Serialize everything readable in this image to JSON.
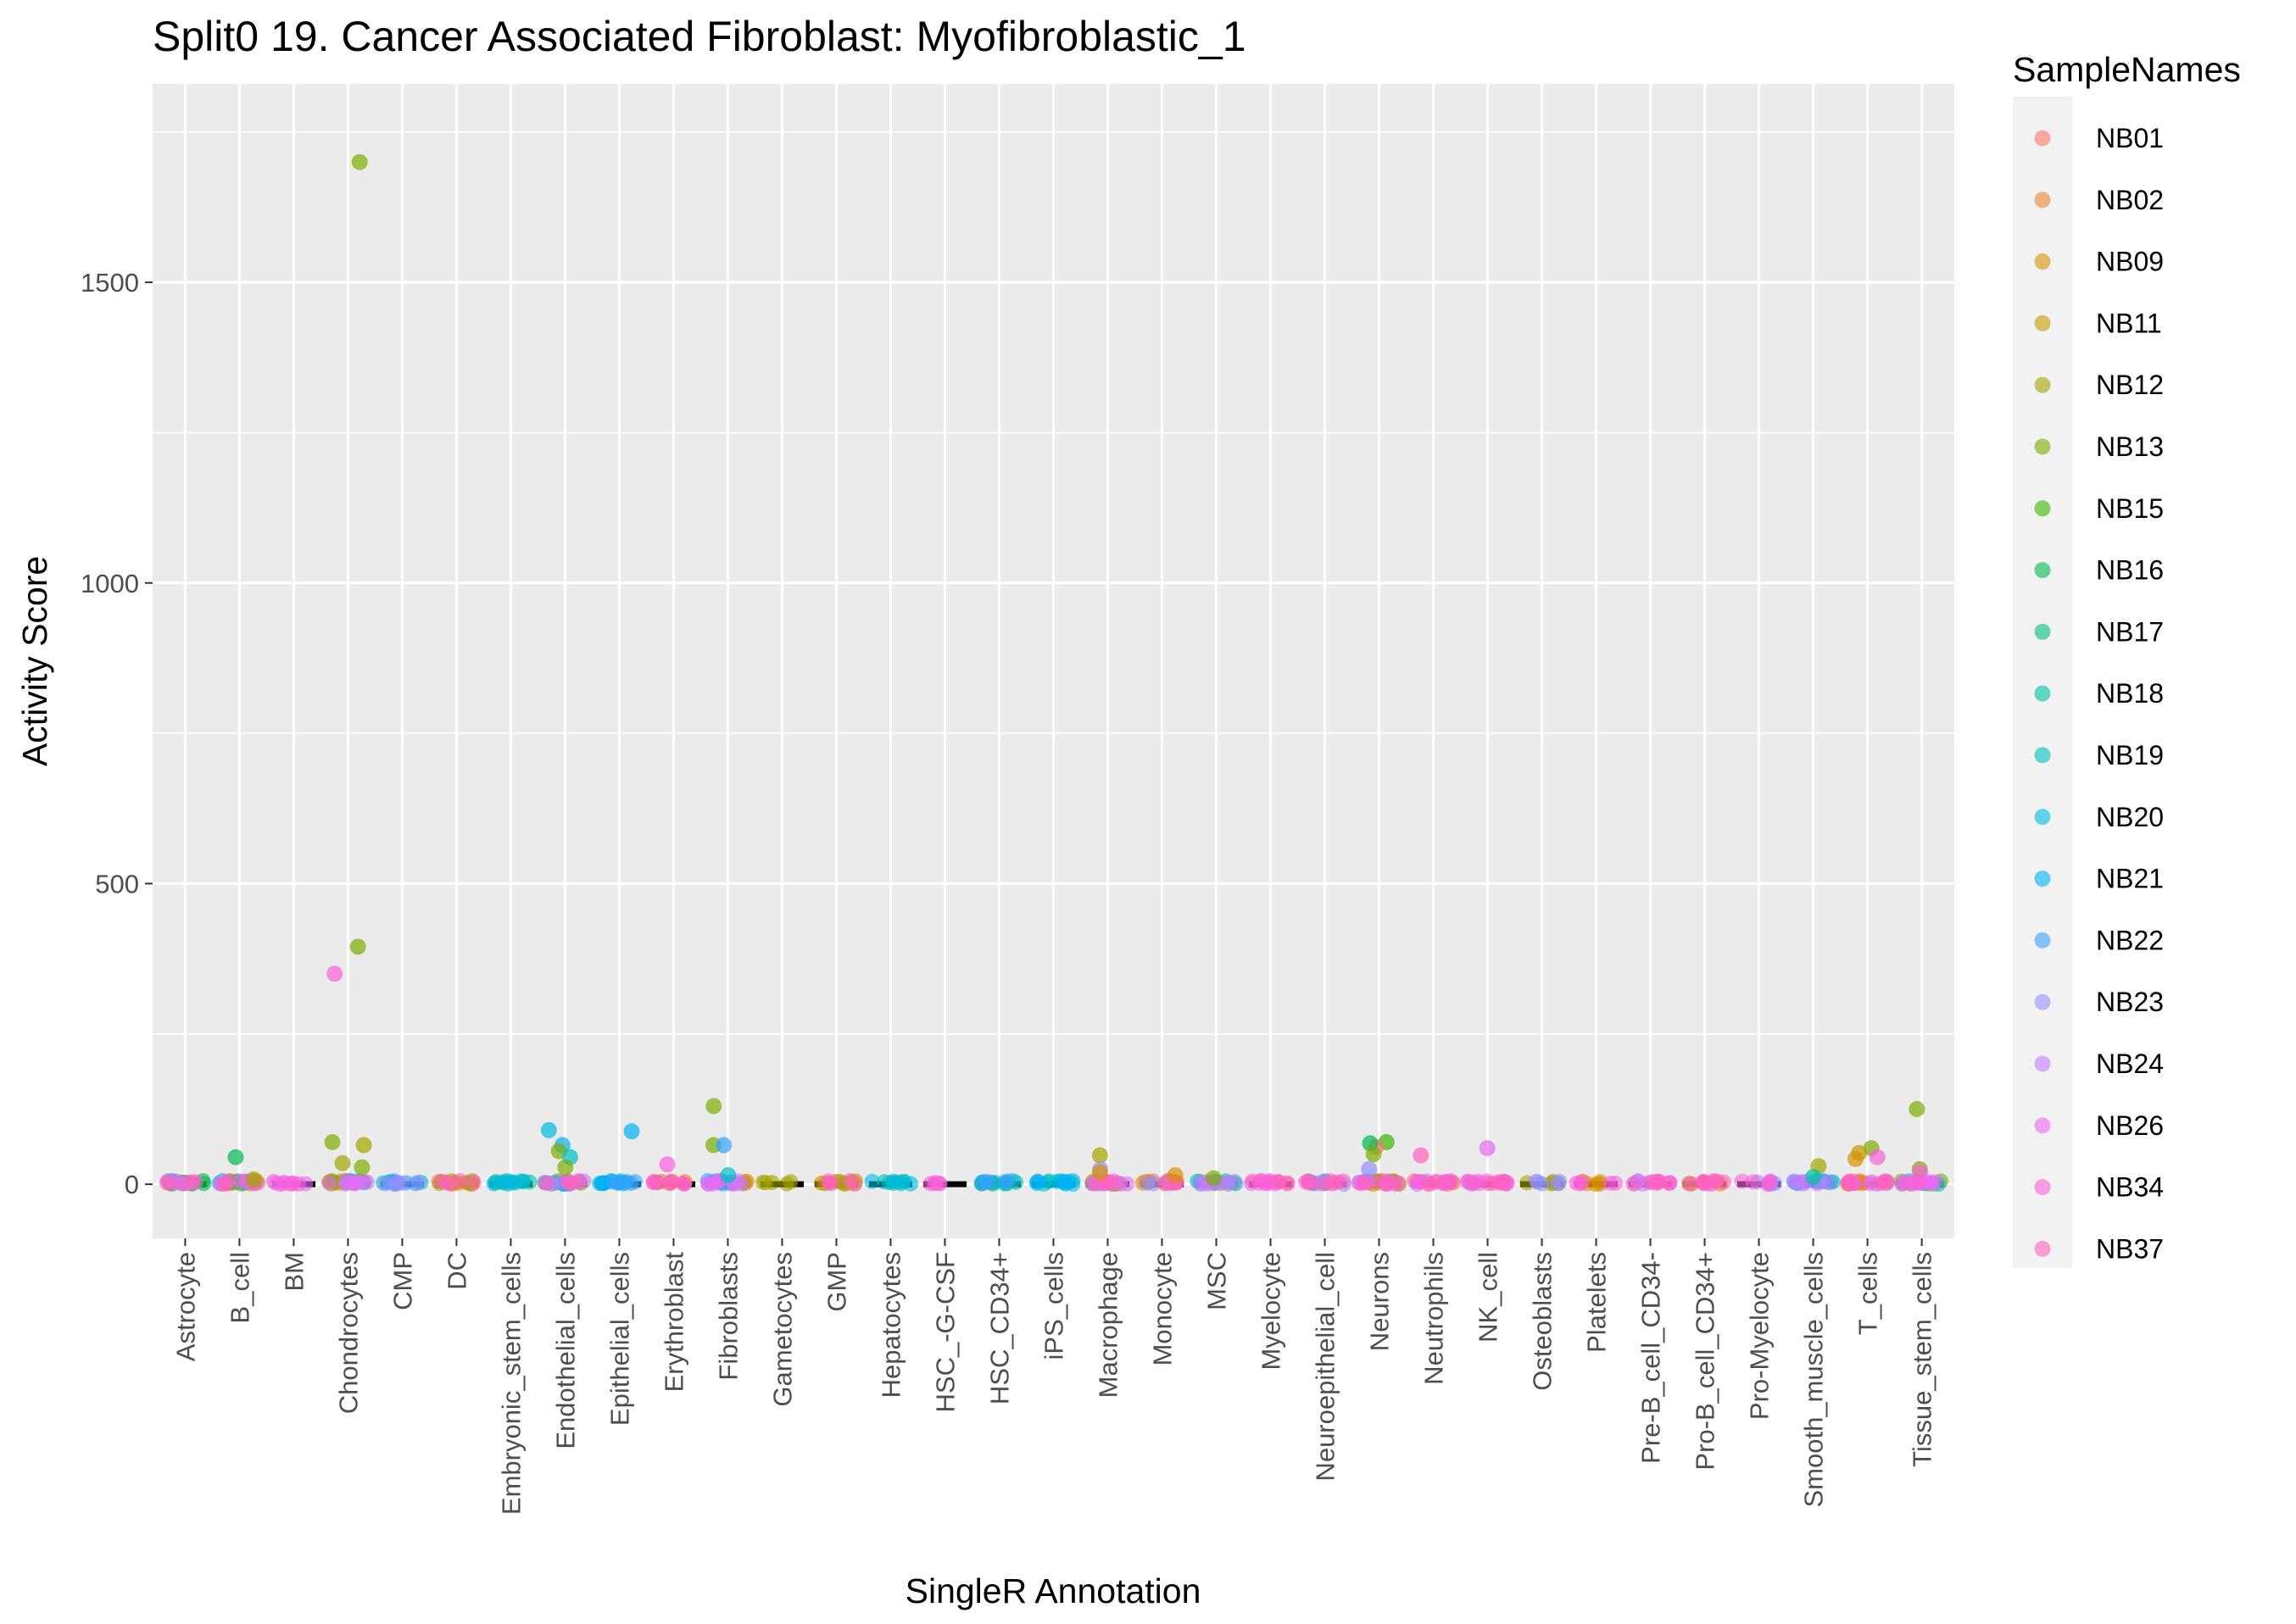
{
  "chart_data": {
    "type": "scatter",
    "title": "Split0 19. Cancer Associated Fibroblast: Myofibroblastic_1",
    "xlabel": "SingleR Annotation",
    "ylabel": "Activity Score",
    "ylim": [
      -90,
      1830
    ],
    "yticks": [
      0,
      500,
      1000,
      1500
    ],
    "grid": true,
    "legend_position": "right",
    "categories": [
      "Astrocyte",
      "B_cell",
      "BM",
      "Chondrocytes",
      "CMP",
      "DC",
      "Embryonic_stem_cells",
      "Endothelial_cells",
      "Epithelial_cells",
      "Erythroblast",
      "Fibroblasts",
      "Gametocytes",
      "GMP",
      "Hepatocytes",
      "HSC_-G-CSF",
      "HSC_CD34+",
      "iPS_cells",
      "Macrophage",
      "Monocyte",
      "MSC",
      "Myelocyte",
      "Neuroepithelial_cell",
      "Neurons",
      "Neutrophils",
      "NK_cell",
      "Osteoblasts",
      "Platelets",
      "Pre-B_cell_CD34-",
      "Pro-B_cell_CD34+",
      "Pro-Myelocyte",
      "Smooth_muscle_cells",
      "T_cells",
      "Tissue_stem_cells"
    ],
    "legend_title": "SampleNames",
    "series": [
      {
        "name": "NB01",
        "color": "#F8766D"
      },
      {
        "name": "NB02",
        "color": "#EA8331"
      },
      {
        "name": "NB09",
        "color": "#D89000"
      },
      {
        "name": "NB11",
        "color": "#C09B00"
      },
      {
        "name": "NB12",
        "color": "#A3A500"
      },
      {
        "name": "NB13",
        "color": "#7CAE00"
      },
      {
        "name": "NB15",
        "color": "#39B600"
      },
      {
        "name": "NB16",
        "color": "#00BB4E"
      },
      {
        "name": "NB17",
        "color": "#00BF7D"
      },
      {
        "name": "NB18",
        "color": "#00C1A3"
      },
      {
        "name": "NB19",
        "color": "#00BFC4"
      },
      {
        "name": "NB20",
        "color": "#00BAE0"
      },
      {
        "name": "NB21",
        "color": "#00B0F6"
      },
      {
        "name": "NB22",
        "color": "#35A2FF"
      },
      {
        "name": "NB23",
        "color": "#9590FF"
      },
      {
        "name": "NB24",
        "color": "#C77CFF"
      },
      {
        "name": "NB26",
        "color": "#E76BF3"
      },
      {
        "name": "NB34",
        "color": "#FA62DB"
      },
      {
        "name": "NB37",
        "color": "#FF62BC"
      }
    ],
    "notable_points": [
      {
        "category": "Chondrocytes",
        "series": "NB13",
        "y": 1700
      },
      {
        "category": "Chondrocytes",
        "series": "NB13",
        "y": 395
      },
      {
        "category": "Chondrocytes",
        "series": "NB34",
        "y": 350
      },
      {
        "category": "Chondrocytes",
        "series": "NB13",
        "y": 70
      },
      {
        "category": "Chondrocytes",
        "series": "NB12",
        "y": 65
      },
      {
        "category": "Chondrocytes",
        "series": "NB12",
        "y": 35
      },
      {
        "category": "Chondrocytes",
        "series": "NB13",
        "y": 28
      },
      {
        "category": "B_cell",
        "series": "NB16",
        "y": 45
      },
      {
        "category": "B_cell",
        "series": "NB12",
        "y": 8
      },
      {
        "category": "Endothelial_cells",
        "series": "NB20",
        "y": 90
      },
      {
        "category": "Endothelial_cells",
        "series": "NB21",
        "y": 65
      },
      {
        "category": "Endothelial_cells",
        "series": "NB13",
        "y": 55
      },
      {
        "category": "Endothelial_cells",
        "series": "NB19",
        "y": 45
      },
      {
        "category": "Endothelial_cells",
        "series": "NB13",
        "y": 28
      },
      {
        "category": "Epithelial_cells",
        "series": "NB21",
        "y": 88
      },
      {
        "category": "Erythroblast",
        "series": "NB34",
        "y": 33
      },
      {
        "category": "Fibroblasts",
        "series": "NB13",
        "y": 130
      },
      {
        "category": "Fibroblasts",
        "series": "NB13",
        "y": 65
      },
      {
        "category": "Fibroblasts",
        "series": "NB22",
        "y": 65
      },
      {
        "category": "Fibroblasts",
        "series": "NB19",
        "y": 15
      },
      {
        "category": "Macrophage",
        "series": "NB12",
        "y": 48
      },
      {
        "category": "Macrophage",
        "series": "NB23",
        "y": 25
      },
      {
        "category": "Macrophage",
        "series": "NB09",
        "y": 20
      },
      {
        "category": "Monocyte",
        "series": "NB09",
        "y": 15
      },
      {
        "category": "MSC",
        "series": "NB13",
        "y": 10
      },
      {
        "category": "Neurons",
        "series": "NB15",
        "y": 70
      },
      {
        "category": "Neurons",
        "series": "NB01",
        "y": 62
      },
      {
        "category": "Neurons",
        "series": "NB16",
        "y": 68
      },
      {
        "category": "Neurons",
        "series": "NB13",
        "y": 50
      },
      {
        "category": "Neurons",
        "series": "NB23",
        "y": 25
      },
      {
        "category": "Neutrophils",
        "series": "NB37",
        "y": 48
      },
      {
        "category": "NK_cell",
        "series": "NB26",
        "y": 60
      },
      {
        "category": "Smooth_muscle_cells",
        "series": "NB12",
        "y": 30
      },
      {
        "category": "Smooth_muscle_cells",
        "series": "NB18",
        "y": 12
      },
      {
        "category": "T_cells",
        "series": "NB13",
        "y": 60
      },
      {
        "category": "T_cells",
        "series": "NB11",
        "y": 52
      },
      {
        "category": "T_cells",
        "series": "NB34",
        "y": 45
      },
      {
        "category": "T_cells",
        "series": "NB09",
        "y": 42
      },
      {
        "category": "Tissue_stem_cells",
        "series": "NB13",
        "y": 125
      },
      {
        "category": "Tissue_stem_cells",
        "series": "NB13",
        "y": 25
      },
      {
        "category": "Tissue_stem_cells",
        "series": "NB34",
        "y": 20
      }
    ],
    "bulk_points": [
      {
        "category": "Astrocyte",
        "series": [
          "NB01",
          "NB09",
          "NB16",
          "NB20",
          "NB24",
          "NB37"
        ]
      },
      {
        "category": "B_cell",
        "series": [
          "NB01",
          "NB09",
          "NB13",
          "NB19",
          "NB24",
          "NB37"
        ]
      },
      {
        "category": "BM",
        "series": [
          "NB26",
          "NB34"
        ]
      },
      {
        "category": "Chondrocytes",
        "series": [
          "NB09",
          "NB12",
          "NB13",
          "NB19",
          "NB24",
          "NB26"
        ]
      },
      {
        "category": "CMP",
        "series": [
          "NB19",
          "NB22",
          "NB23"
        ]
      },
      {
        "category": "DC",
        "series": [
          "NB01",
          "NB09",
          "NB12",
          "NB37"
        ]
      },
      {
        "category": "Embryonic_stem_cells",
        "series": [
          "NB18",
          "NB19",
          "NB20"
        ]
      },
      {
        "category": "Endothelial_cells",
        "series": [
          "NB13",
          "NB19",
          "NB21",
          "NB24",
          "NB37"
        ]
      },
      {
        "category": "Epithelial_cells",
        "series": [
          "NB19",
          "NB20",
          "NB21",
          "NB22"
        ]
      },
      {
        "category": "Erythroblast",
        "series": [
          "NB09",
          "NB34",
          "NB37"
        ]
      },
      {
        "category": "Fibroblasts",
        "series": [
          "NB09",
          "NB19",
          "NB22",
          "NB24",
          "NB26"
        ]
      },
      {
        "category": "Gametocytes",
        "series": [
          "NB12"
        ]
      },
      {
        "category": "GMP",
        "series": [
          "NB09",
          "NB12",
          "NB37"
        ]
      },
      {
        "category": "Hepatocytes",
        "series": [
          "NB18",
          "NB20"
        ]
      },
      {
        "category": "HSC_-G-CSF",
        "series": [
          "NB34"
        ]
      },
      {
        "category": "HSC_CD34+",
        "series": [
          "NB16",
          "NB19",
          "NB22"
        ]
      },
      {
        "category": "iPS_cells",
        "series": [
          "NB19",
          "NB20",
          "NB21"
        ]
      },
      {
        "category": "Macrophage",
        "series": [
          "NB09",
          "NB12",
          "NB23",
          "NB26",
          "NB37"
        ]
      },
      {
        "category": "Monocyte",
        "series": [
          "NB01",
          "NB09",
          "NB23",
          "NB37"
        ]
      },
      {
        "category": "MSC",
        "series": [
          "NB12",
          "NB19",
          "NB23",
          "NB24"
        ]
      },
      {
        "category": "Myelocyte",
        "series": [
          "NB26",
          "NB34",
          "NB37"
        ]
      },
      {
        "category": "Neuroepithelial_cell",
        "series": [
          "NB16",
          "NB23",
          "NB34",
          "NB37"
        ]
      },
      {
        "category": "Neurons",
        "series": [
          "NB01",
          "NB09",
          "NB13",
          "NB23",
          "NB34",
          "NB37"
        ]
      },
      {
        "category": "Neutrophils",
        "series": [
          "NB01",
          "NB24",
          "NB34",
          "NB37"
        ]
      },
      {
        "category": "NK_cell",
        "series": [
          "NB24",
          "NB26",
          "NB34",
          "NB37"
        ]
      },
      {
        "category": "Osteoblasts",
        "series": [
          "NB12",
          "NB23"
        ]
      },
      {
        "category": "Platelets",
        "series": [
          "NB09",
          "NB34"
        ]
      },
      {
        "category": "Pre-B_cell_CD34-",
        "series": [
          "NB24",
          "NB26",
          "NB37"
        ]
      },
      {
        "category": "Pro-B_cell_CD34+",
        "series": [
          "NB09",
          "NB34",
          "NB37"
        ]
      },
      {
        "category": "Pro-Myelocyte",
        "series": [
          "NB23",
          "NB34"
        ]
      },
      {
        "category": "Smooth_muscle_cells",
        "series": [
          "NB19",
          "NB20",
          "NB23",
          "NB24"
        ]
      },
      {
        "category": "T_cells",
        "series": [
          "NB01",
          "NB09",
          "NB24",
          "NB34",
          "NB37"
        ]
      },
      {
        "category": "Tissue_stem_cells",
        "series": [
          "NB13",
          "NB19",
          "NB24",
          "NB26",
          "NB34"
        ]
      }
    ]
  }
}
